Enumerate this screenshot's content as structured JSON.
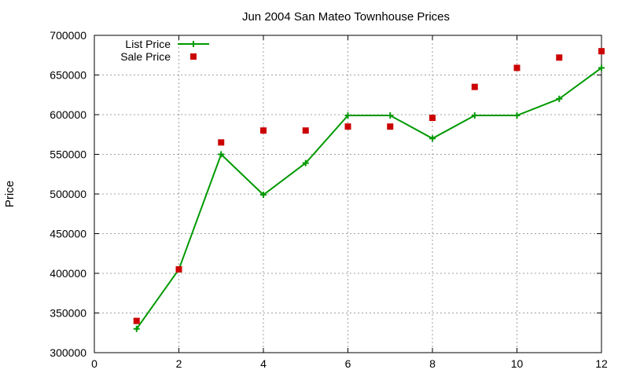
{
  "chart_data": {
    "type": "line",
    "title": "Jun 2004 San Mateo Townhouse Prices",
    "xlabel": "",
    "ylabel": "Price",
    "xlim": [
      0,
      12
    ],
    "ylim": [
      300000,
      700000
    ],
    "x_ticks": [
      "0",
      "2",
      "4",
      "6",
      "8",
      "10",
      "12"
    ],
    "y_ticks": [
      "300000",
      "350000",
      "400000",
      "450000",
      "500000",
      "550000",
      "600000",
      "650000",
      "700000"
    ],
    "grid": true,
    "legend_position": "top-left",
    "series": [
      {
        "name": "List Price",
        "style": "line-points",
        "color": "#009900",
        "x": [
          1,
          2,
          3,
          4,
          5,
          6,
          7,
          8,
          9,
          10,
          11,
          12
        ],
        "y": [
          330000,
          405000,
          550000,
          499000,
          539000,
          599000,
          599000,
          570000,
          599000,
          599000,
          620000,
          659000
        ]
      },
      {
        "name": "Sale Price",
        "style": "points",
        "color": "#cc0000",
        "x": [
          1,
          2,
          3,
          4,
          5,
          6,
          7,
          8,
          9,
          10,
          11,
          12
        ],
        "y": [
          340000,
          405000,
          565000,
          580000,
          580000,
          585000,
          585000,
          596000,
          635000,
          659000,
          672000,
          680000
        ]
      }
    ]
  }
}
